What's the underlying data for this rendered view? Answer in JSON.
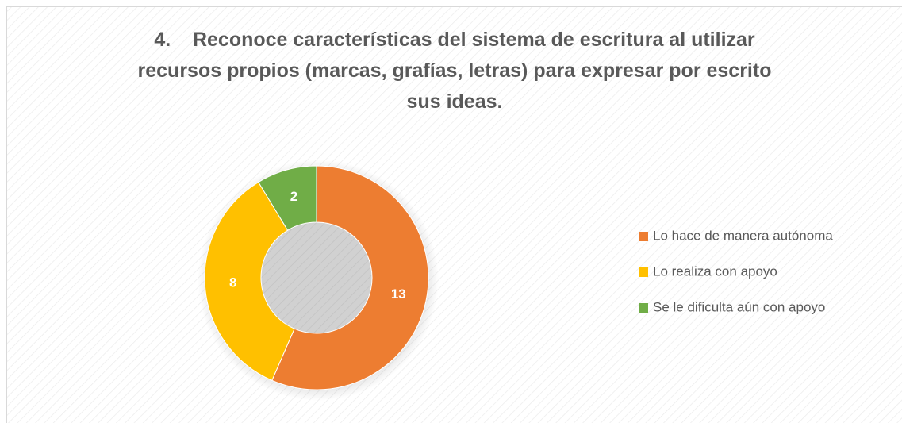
{
  "chart_data": {
    "type": "donut",
    "title": [
      "4.    Reconoce características del sistema de escritura al utilizar",
      "recursos propios (marcas, grafías, letras) para expresar por escrito",
      "sus ideas."
    ],
    "categories": [
      "Lo hace de manera autónoma",
      "Lo realiza con apoyo",
      "Se le dificulta aún con apoyo"
    ],
    "values": [
      13,
      8,
      2
    ],
    "colors": [
      "#ED7D31",
      "#FFC000",
      "#70AD47"
    ],
    "legend": "right"
  }
}
